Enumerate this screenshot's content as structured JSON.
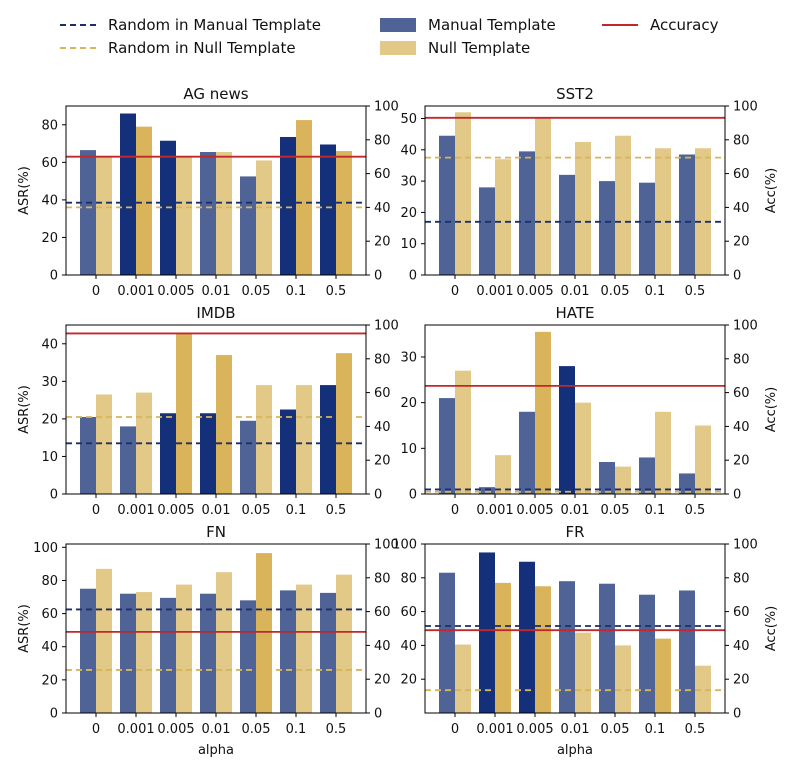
{
  "legend": {
    "items": [
      {
        "label": "Random in Manual Template",
        "kind": "dashed",
        "color": "#1b2f6b"
      },
      {
        "label": "Random in Null Template",
        "kind": "dashed",
        "color": "#d9b45a"
      },
      {
        "label": "Manual Template",
        "kind": "patch",
        "color": "#4f6396"
      },
      {
        "label": "Null Template",
        "kind": "patch",
        "color": "#e3c988"
      },
      {
        "label": "Accuracy",
        "kind": "line",
        "color": "#c0282c"
      }
    ]
  },
  "colors": {
    "manual": "#4f6396",
    "manual_highlight": "#15307a",
    "null": "#e3c988",
    "null_highlight": "#d9b45a",
    "random_manual": "#1b2f6b",
    "random_null": "#d9b45a",
    "accuracy": "#c0282c"
  },
  "chart_data": [
    {
      "type": "bar",
      "title": "AG news",
      "categories": [
        "0",
        "0.001",
        "0.005",
        "0.01",
        "0.05",
        "0.1",
        "0.5"
      ],
      "series": [
        {
          "name": "Manual Template",
          "values": [
            66.5,
            86,
            71.5,
            65.5,
            52.5,
            73.5,
            69.5
          ],
          "highlight": [
            false,
            true,
            true,
            false,
            false,
            true,
            true
          ]
        },
        {
          "name": "Null Template",
          "values": [
            63,
            79,
            63,
            65.5,
            61,
            82.5,
            66
          ],
          "highlight": [
            false,
            true,
            false,
            false,
            false,
            true,
            true
          ]
        }
      ],
      "random_manual": 38.5,
      "random_null": 36,
      "accuracy": 70,
      "ylabel": "ASR(%)",
      "y2label": "",
      "xlabel": "",
      "ylim": [
        0,
        90
      ],
      "yticks": [
        0,
        20,
        40,
        60,
        80
      ],
      "y2lim": [
        0,
        100
      ],
      "y2ticks": [
        0,
        20,
        40,
        60,
        80,
        100
      ]
    },
    {
      "type": "bar",
      "title": "SST2",
      "categories": [
        "0",
        "0.001",
        "0.005",
        "0.01",
        "0.05",
        "0.1",
        "0.5"
      ],
      "series": [
        {
          "name": "Manual Template",
          "values": [
            44.5,
            28,
            39.5,
            32,
            30,
            29.5,
            38.5
          ],
          "highlight": [
            false,
            false,
            false,
            false,
            false,
            false,
            false
          ]
        },
        {
          "name": "Null Template",
          "values": [
            52,
            37,
            50,
            42.5,
            44.5,
            40.5,
            40.5
          ],
          "highlight": [
            false,
            false,
            false,
            false,
            false,
            false,
            false
          ]
        }
      ],
      "random_manual": 17,
      "random_null": 37.5,
      "accuracy": 93,
      "ylabel": "",
      "y2label": "Acc(%)",
      "xlabel": "",
      "ylim": [
        0,
        54
      ],
      "yticks": [
        0,
        10,
        20,
        30,
        40,
        50
      ],
      "y2lim": [
        0,
        100
      ],
      "y2ticks": [
        0,
        20,
        40,
        60,
        80,
        100
      ]
    },
    {
      "type": "bar",
      "title": "IMDB",
      "categories": [
        "0",
        "0.001",
        "0.005",
        "0.01",
        "0.05",
        "0.1",
        "0.5"
      ],
      "series": [
        {
          "name": "Manual Template",
          "values": [
            20.5,
            18,
            21.5,
            21.5,
            19.5,
            22.5,
            29
          ],
          "highlight": [
            false,
            false,
            true,
            true,
            false,
            true,
            true
          ]
        },
        {
          "name": "Null Template",
          "values": [
            26.5,
            27,
            43,
            37,
            29,
            29,
            37.5
          ],
          "highlight": [
            false,
            false,
            true,
            true,
            false,
            false,
            true
          ]
        }
      ],
      "random_manual": 13.5,
      "random_null": 20.5,
      "accuracy": 95,
      "ylabel": "ASR(%)",
      "y2label": "",
      "xlabel": "",
      "ylim": [
        0,
        45
      ],
      "yticks": [
        0,
        10,
        20,
        30,
        40
      ],
      "y2lim": [
        0,
        100
      ],
      "y2ticks": [
        0,
        20,
        40,
        60,
        80,
        100
      ]
    },
    {
      "type": "bar",
      "title": "HATE",
      "categories": [
        "0",
        "0.001",
        "0.005",
        "0.01",
        "0.05",
        "0.1",
        "0.5"
      ],
      "series": [
        {
          "name": "Manual Template",
          "values": [
            21,
            1.5,
            18,
            28,
            7,
            8,
            4.5
          ],
          "highlight": [
            false,
            false,
            false,
            true,
            false,
            false,
            false
          ]
        },
        {
          "name": "Null Template",
          "values": [
            27,
            8.5,
            35.5,
            20,
            6,
            18,
            15
          ],
          "highlight": [
            false,
            false,
            true,
            false,
            false,
            false,
            false
          ]
        }
      ],
      "random_manual": 1,
      "random_null": 0.5,
      "accuracy": 64,
      "ylabel": "",
      "y2label": "Acc(%)",
      "xlabel": "",
      "ylim": [
        0,
        37
      ],
      "yticks": [
        0,
        10,
        20,
        30
      ],
      "y2lim": [
        0,
        100
      ],
      "y2ticks": [
        0,
        20,
        40,
        60,
        80,
        100
      ]
    },
    {
      "type": "bar",
      "title": "FN",
      "categories": [
        "0",
        "0.001",
        "0.005",
        "0.01",
        "0.05",
        "0.1",
        "0.5"
      ],
      "series": [
        {
          "name": "Manual Template",
          "values": [
            75,
            72,
            69.5,
            72,
            68,
            74,
            72.5
          ],
          "highlight": [
            false,
            false,
            false,
            false,
            false,
            false,
            false
          ]
        },
        {
          "name": "Null Template",
          "values": [
            87,
            73,
            77.5,
            85,
            96.5,
            77.5,
            83.5
          ],
          "highlight": [
            false,
            false,
            false,
            false,
            true,
            false,
            false
          ]
        }
      ],
      "random_manual": 62.5,
      "random_null": 26,
      "accuracy": 48,
      "ylabel": "ASR(%)",
      "y2label": "",
      "xlabel": "alpha",
      "ylim": [
        0,
        102
      ],
      "yticks": [
        0,
        20,
        40,
        60,
        80,
        100
      ],
      "y2lim": [
        0,
        100
      ],
      "y2ticks": [
        0,
        20,
        40,
        60,
        80,
        100
      ]
    },
    {
      "type": "bar",
      "title": "FR",
      "categories": [
        "0",
        "0.001",
        "0.005",
        "0.01",
        "0.05",
        "0.1",
        "0.5"
      ],
      "series": [
        {
          "name": "Manual Template",
          "values": [
            83,
            95,
            89.5,
            78,
            76.5,
            70,
            72.5
          ],
          "highlight": [
            false,
            true,
            true,
            false,
            false,
            false,
            false
          ]
        },
        {
          "name": "Null Template",
          "values": [
            40.5,
            77,
            75,
            47.5,
            40,
            44,
            28
          ],
          "highlight": [
            false,
            true,
            true,
            false,
            false,
            true,
            false
          ]
        }
      ],
      "random_manual": 51.5,
      "random_null": 13.5,
      "accuracy": 49,
      "ylabel": "",
      "y2label": "Acc(%)",
      "xlabel": "alpha",
      "ylim": [
        0,
        100
      ],
      "yticks": [
        20,
        40,
        60,
        80,
        100
      ],
      "y2lim": [
        0,
        100
      ],
      "y2ticks": [
        0,
        20,
        40,
        60,
        80,
        100
      ]
    }
  ]
}
